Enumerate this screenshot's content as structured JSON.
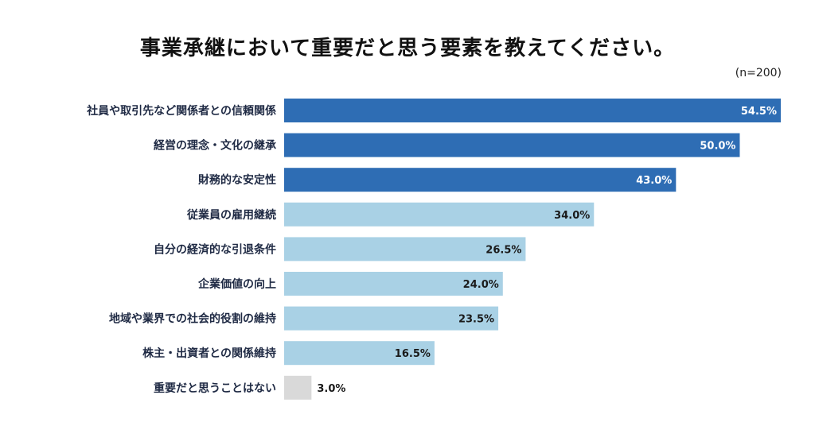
{
  "chart_data": {
    "type": "bar",
    "orientation": "horizontal",
    "title": "事業承継において重要だと思う要素を教えてください。",
    "sample_note": "(n=200)",
    "categories": [
      "社員や取引先など関係者との信頼関係",
      "経営の理念・文化の継承",
      "財務的な安定性",
      "従業員の雇用継続",
      "自分の経済的な引退条件",
      "企業価値の向上",
      "地域や業界での社会的役割の維持",
      "株主・出資者との関係維持",
      "重要だと思うことはない"
    ],
    "values": [
      54.5,
      50.0,
      43.0,
      34.0,
      26.5,
      24.0,
      23.5,
      16.5,
      3.0
    ],
    "value_labels": [
      "54.5%",
      "50.0%",
      "43.0%",
      "34.0%",
      "26.5%",
      "24.0%",
      "23.5%",
      "16.5%",
      "3.0%"
    ],
    "xlim": [
      0,
      54.5
    ],
    "grid": false,
    "legend": "none"
  },
  "colors": {
    "top3": "#2e6db4",
    "others": "#a9d1e5",
    "none": "#d9d9d9",
    "label_text": "#1f2a44"
  }
}
